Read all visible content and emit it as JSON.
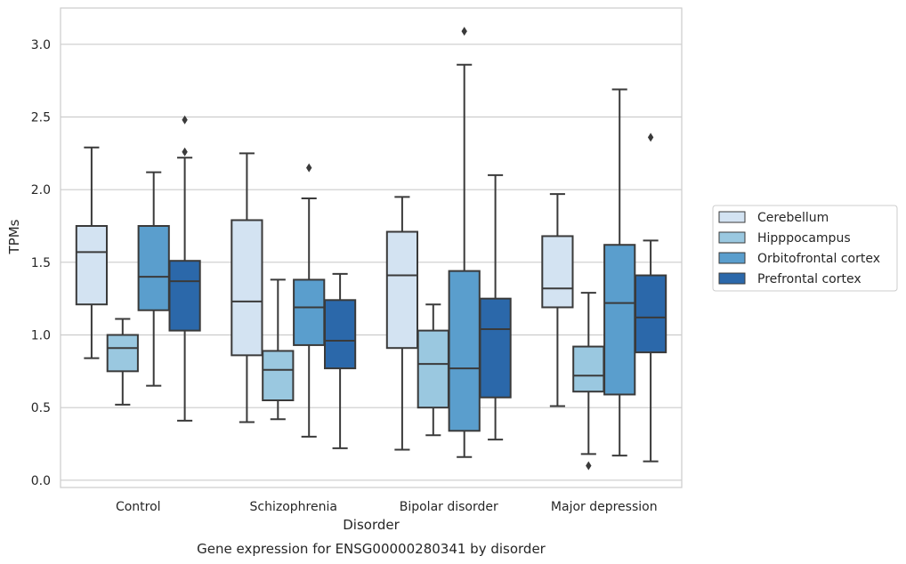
{
  "chart_data": {
    "type": "boxplot",
    "title": "",
    "caption": "Gene expression for ENSG00000280341 by disorder",
    "xlabel": "Disorder",
    "ylabel": "TPMs",
    "ylim": [
      -0.05,
      3.25
    ],
    "yticks": [
      0.0,
      0.5,
      1.0,
      1.5,
      2.0,
      2.5,
      3.0
    ],
    "ytick_labels": [
      "0.0",
      "0.5",
      "1.0",
      "1.5",
      "2.0",
      "2.5",
      "3.0"
    ],
    "grid": "horizontal",
    "legend_placement": "right",
    "categories": [
      "Control",
      "Schizophrenia",
      "Bipolar disorder",
      "Major depression"
    ],
    "series": [
      {
        "name": "Cerebellum",
        "color": "#d3e3f2",
        "boxes": [
          {
            "whislo": 0.84,
            "q1": 1.21,
            "med": 1.57,
            "q3": 1.75,
            "whishi": 2.29,
            "fliers": []
          },
          {
            "whislo": 0.4,
            "q1": 0.86,
            "med": 1.23,
            "q3": 1.79,
            "whishi": 2.25,
            "fliers": []
          },
          {
            "whislo": 0.21,
            "q1": 0.91,
            "med": 1.41,
            "q3": 1.71,
            "whishi": 1.95,
            "fliers": []
          },
          {
            "whislo": 0.51,
            "q1": 1.19,
            "med": 1.32,
            "q3": 1.68,
            "whishi": 1.97,
            "fliers": []
          }
        ]
      },
      {
        "name": "Hipppocampus",
        "color": "#9ac8e0",
        "boxes": [
          {
            "whislo": 0.52,
            "q1": 0.75,
            "med": 0.91,
            "q3": 1.0,
            "whishi": 1.11,
            "fliers": []
          },
          {
            "whislo": 0.42,
            "q1": 0.55,
            "med": 0.76,
            "q3": 0.89,
            "whishi": 1.38,
            "fliers": []
          },
          {
            "whislo": 0.31,
            "q1": 0.5,
            "med": 0.8,
            "q3": 1.03,
            "whishi": 1.21,
            "fliers": []
          },
          {
            "whislo": 0.18,
            "q1": 0.61,
            "med": 0.72,
            "q3": 0.92,
            "whishi": 1.29,
            "fliers": [
              0.1
            ]
          }
        ]
      },
      {
        "name": "Orbitofrontal cortex",
        "color": "#5a9ecd",
        "boxes": [
          {
            "whislo": 0.65,
            "q1": 1.17,
            "med": 1.4,
            "q3": 1.75,
            "whishi": 2.12,
            "fliers": []
          },
          {
            "whislo": 0.3,
            "q1": 0.93,
            "med": 1.19,
            "q3": 1.38,
            "whishi": 1.94,
            "fliers": [
              2.15
            ]
          },
          {
            "whislo": 0.16,
            "q1": 0.34,
            "med": 0.77,
            "q3": 1.44,
            "whishi": 2.86,
            "fliers": [
              3.09
            ]
          },
          {
            "whislo": 0.17,
            "q1": 0.59,
            "med": 1.22,
            "q3": 1.62,
            "whishi": 2.69,
            "fliers": []
          }
        ]
      },
      {
        "name": "Prefrontal cortex",
        "color": "#2b68aa",
        "boxes": [
          {
            "whislo": 0.41,
            "q1": 1.03,
            "med": 1.37,
            "q3": 1.51,
            "whishi": 2.22,
            "fliers": [
              2.26,
              2.48
            ]
          },
          {
            "whislo": 0.22,
            "q1": 0.77,
            "med": 0.96,
            "q3": 1.24,
            "whishi": 1.42,
            "fliers": []
          },
          {
            "whislo": 0.28,
            "q1": 0.57,
            "med": 1.04,
            "q3": 1.25,
            "whishi": 2.1,
            "fliers": []
          },
          {
            "whislo": 0.13,
            "q1": 0.88,
            "med": 1.12,
            "q3": 1.41,
            "whishi": 1.65,
            "fliers": [
              2.36
            ]
          }
        ]
      }
    ]
  }
}
